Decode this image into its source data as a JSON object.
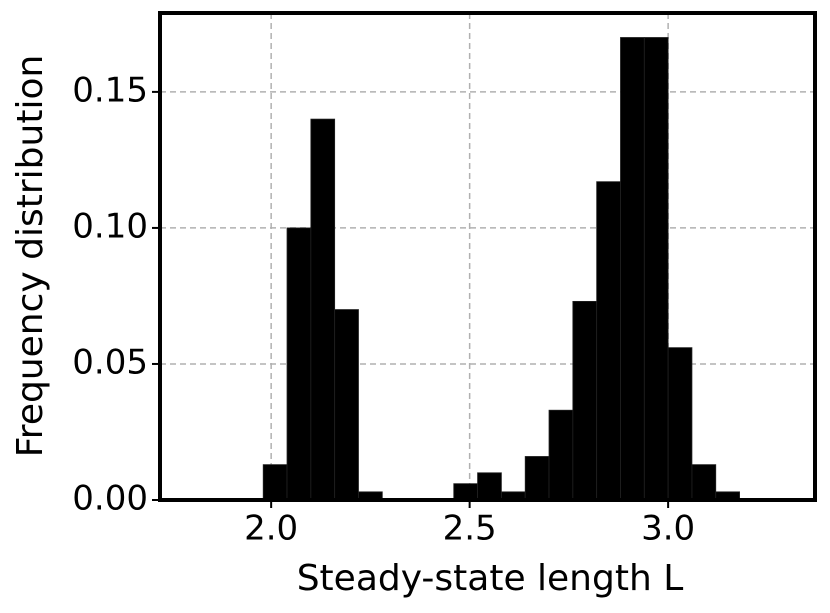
{
  "chart_data": {
    "type": "histogram",
    "xlabel": "Steady-state length L",
    "ylabel": "Frequency distribution",
    "bins": [
      1.98,
      2.04,
      2.1,
      2.16,
      2.22,
      2.28,
      2.34,
      2.4,
      2.46,
      2.52,
      2.58,
      2.64,
      2.7,
      2.76,
      2.82,
      2.88,
      2.94,
      3.0,
      3.06,
      3.12,
      3.18
    ],
    "values": [
      0.013,
      0.1,
      0.14,
      0.07,
      0.003,
      0,
      0,
      0,
      0.006,
      0.01,
      0.003,
      0.016,
      0.033,
      0.073,
      0.117,
      0.17,
      0.17,
      0.056,
      0.013,
      0.003
    ],
    "color": "#000000",
    "xlim": [
      1.72,
      3.37
    ],
    "ylim": [
      0,
      0.179
    ],
    "xticks": [
      {
        "value": 2,
        "label": "2.0"
      },
      {
        "value": 2.5,
        "label": "2.5"
      },
      {
        "value": 3,
        "label": "3.0"
      }
    ],
    "yticks": [
      {
        "value": 0,
        "label": "0.00"
      },
      0.05,
      {
        "value": 0.1,
        "label": "0.10"
      },
      0.15
    ],
    "grid": true
  }
}
